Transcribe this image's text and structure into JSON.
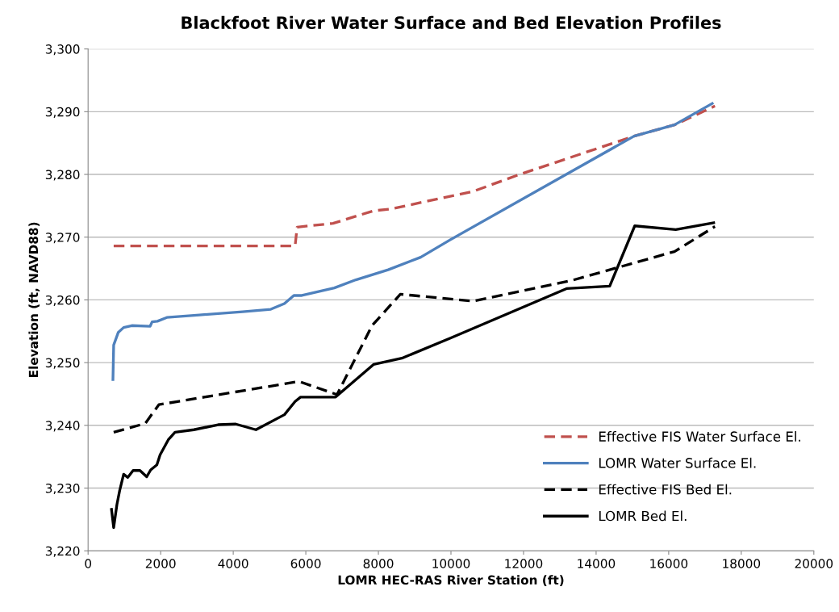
{
  "chart_data": {
    "type": "line",
    "title": "Blackfoot River Water Surface and Bed Elevation Profiles",
    "xlabel": "LOMR HEC-RAS River Station (ft)",
    "ylabel": "Elevation (ft, NAVD88)",
    "xlim": [
      0,
      20000
    ],
    "xticks": [
      0,
      2000,
      4000,
      6000,
      8000,
      10000,
      12000,
      14000,
      16000,
      18000,
      20000
    ],
    "ylim": [
      3220,
      3300
    ],
    "yticks": [
      {
        "value": 3220,
        "label": "3,220"
      },
      {
        "value": 3230,
        "label": "3,230"
      },
      {
        "value": 3240,
        "label": "3,240"
      },
      {
        "value": 3250,
        "label": "3,250"
      },
      {
        "value": 3260,
        "label": "3,260"
      },
      {
        "value": 3270,
        "label": "3,270"
      },
      {
        "value": 3280,
        "label": "3,280"
      },
      {
        "value": 3290,
        "label": "3,290"
      },
      {
        "value": 3300,
        "label": "3,300"
      }
    ],
    "grid": "y",
    "legend": "bottom right",
    "marker": "none",
    "series": [
      {
        "name": "Effective FIS Water Surface El.",
        "color": "#c0504d",
        "line_style": "dashed",
        "x": [
          705,
          5705,
          5760,
          6750,
          7865,
          8350,
          10615,
          11845,
          15045,
          16160,
          17275
        ],
        "values": [
          3268.6,
          3268.6,
          3271.6,
          3272.2,
          3274.2,
          3274.5,
          3277.3,
          3279.9,
          3286.1,
          3287.9,
          3290.9
        ]
      },
      {
        "name": "LOMR Water Surface El.",
        "color": "#4f81bd",
        "line_style": "solid",
        "x": [
          685,
          705,
          830,
          980,
          1205,
          1710,
          1765,
          1910,
          2170,
          3065,
          4255,
          5035,
          5410,
          5670,
          5890,
          6785,
          7380,
          8270,
          9165,
          9985,
          15045,
          16160,
          17200
        ],
        "values": [
          3247.3,
          3252.8,
          3254.8,
          3255.6,
          3255.9,
          3255.8,
          3256.5,
          3256.6,
          3257.2,
          3257.6,
          3258.1,
          3258.5,
          3259.4,
          3260.7,
          3260.7,
          3261.9,
          3263.2,
          3264.8,
          3266.8,
          3269.6,
          3286.1,
          3287.9,
          3291.3
        ]
      },
      {
        "name": "Effective FIS Bed El.",
        "color": "#000000",
        "line_style": "dashed",
        "x": [
          705,
          1575,
          1950,
          5815,
          6860,
          7825,
          8605,
          10615,
          13330,
          16160,
          17275
        ],
        "values": [
          3238.9,
          3240.3,
          3243.3,
          3247.0,
          3244.9,
          3255.9,
          3260.9,
          3259.8,
          3263.1,
          3267.7,
          3271.7
        ]
      },
      {
        "name": "LOMR Bed El.",
        "color": "#000000",
        "line_style": "solid",
        "x": [
          645,
          705,
          795,
          870,
          980,
          1095,
          1240,
          1430,
          1615,
          1725,
          1895,
          1985,
          2210,
          2395,
          2915,
          3585,
          4070,
          4625,
          5410,
          5705,
          5855,
          6820,
          7865,
          8645,
          9985,
          13185,
          14375,
          15065,
          16195,
          17240
        ],
        "values": [
          3226.6,
          3223.7,
          3227.4,
          3229.6,
          3232.2,
          3231.7,
          3232.8,
          3232.8,
          3231.8,
          3232.9,
          3233.7,
          3235.3,
          3237.7,
          3238.9,
          3239.3,
          3240.1,
          3240.2,
          3239.3,
          3241.7,
          3243.8,
          3244.5,
          3244.5,
          3249.7,
          3250.7,
          3253.9,
          3261.8,
          3262.2,
          3271.8,
          3271.2,
          3272.3
        ]
      }
    ]
  }
}
